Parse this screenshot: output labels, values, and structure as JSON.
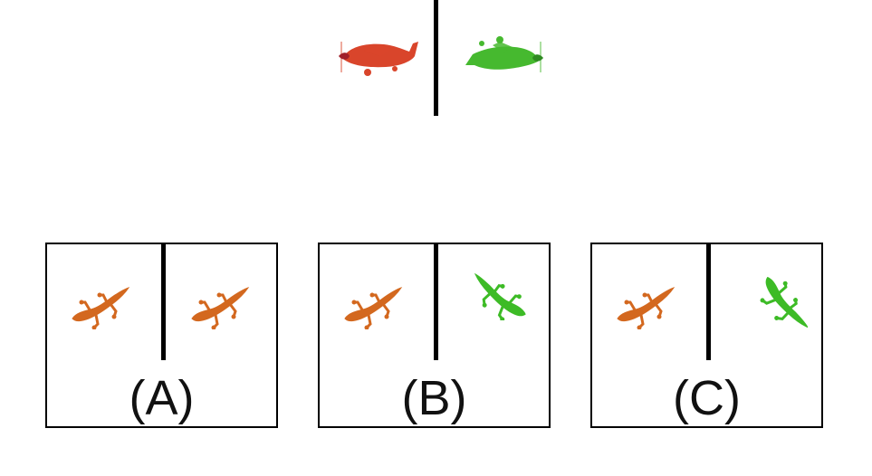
{
  "colors": {
    "red_plane": "#d9452b",
    "green_plane": "#46b92f",
    "lizard_orange": "#d3681f",
    "lizard_green": "#3dbb26",
    "line": "#000000"
  },
  "example": {
    "left_icon": "red-airplane-icon",
    "right_icon": "green-airplane-icon"
  },
  "options": [
    {
      "label": "(A)",
      "left_icon": "orange-lizard-icon",
      "right_icon": "orange-lizard-icon"
    },
    {
      "label": "(B)",
      "left_icon": "orange-lizard-icon",
      "right_icon": "green-lizard-icon"
    },
    {
      "label": "(C)",
      "left_icon": "orange-lizard-icon",
      "right_icon": "green-lizard-icon"
    }
  ]
}
